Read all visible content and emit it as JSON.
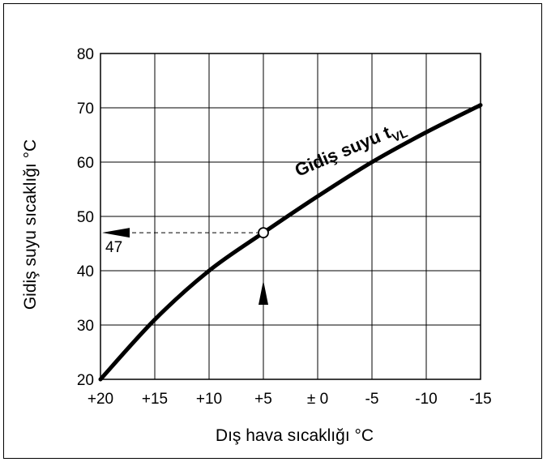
{
  "chart_data": {
    "type": "line",
    "xlabel": "Dış hava sıcaklığı °C",
    "ylabel": "Gidiş suyu sıcaklığı °C",
    "x_tick_labels": [
      "+20",
      "+15",
      "+10",
      "+5",
      "± 0",
      "-5",
      "-10",
      "-15"
    ],
    "x_tick_values": [
      20,
      15,
      10,
      5,
      0,
      -5,
      -10,
      -15
    ],
    "y_ticks": [
      20,
      30,
      40,
      50,
      60,
      70,
      80
    ],
    "xlim": [
      20,
      -15
    ],
    "ylim": [
      20,
      80
    ],
    "grid": true,
    "series": [
      {
        "name": "Gidiş suyu t",
        "name_subscript": "VL",
        "x": [
          20,
          15,
          10,
          5,
          0,
          -5,
          -10,
          -15
        ],
        "y": [
          20,
          31,
          40,
          47,
          53.7,
          60,
          65.5,
          70.5
        ]
      }
    ],
    "annotation": {
      "x": 5,
      "y": 47,
      "label": "47"
    }
  }
}
